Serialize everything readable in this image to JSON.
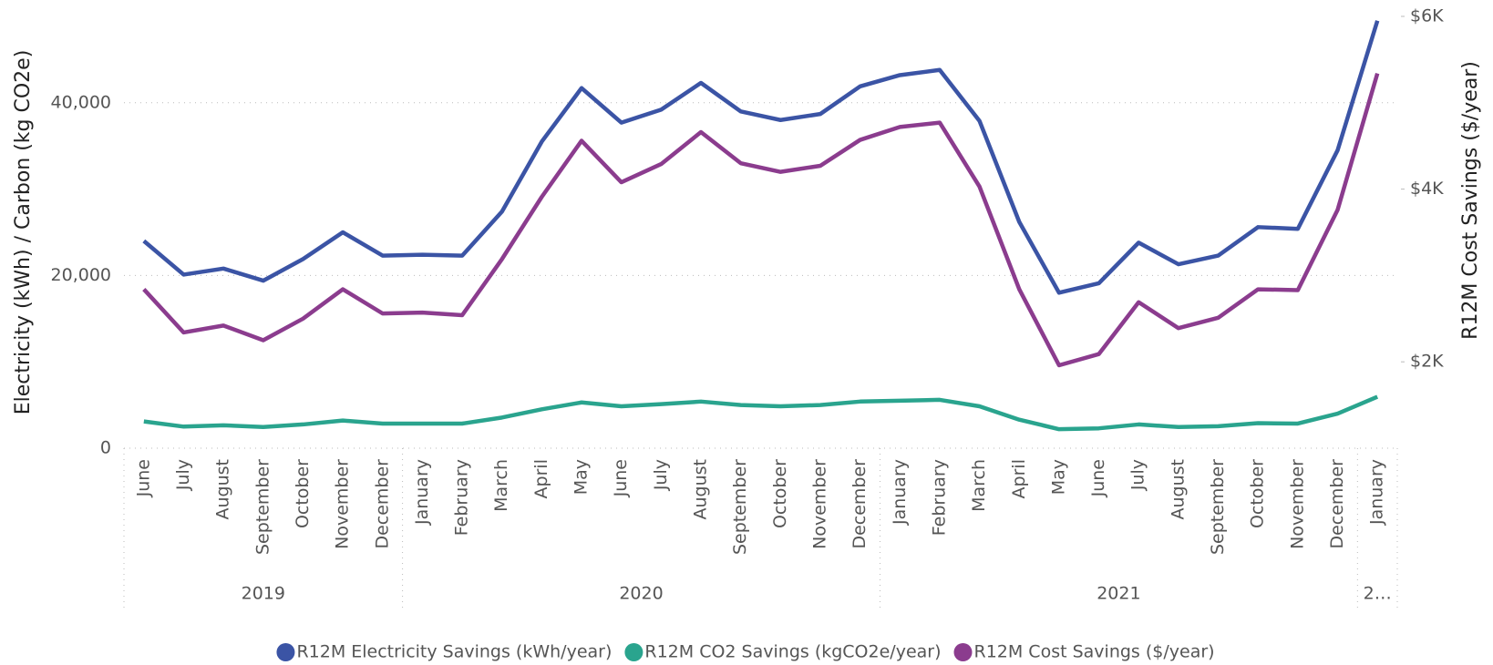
{
  "chart_data": {
    "type": "line",
    "y_label": "Electricity (kWh) / Carbon (kg CO2e)",
    "y2_label": "R12M Cost Savings ($/year)",
    "categories": [
      "June",
      "July",
      "August",
      "September",
      "October",
      "November",
      "December",
      "January",
      "February",
      "March",
      "April",
      "May",
      "June",
      "July",
      "August",
      "September",
      "October",
      "November",
      "December",
      "January",
      "February",
      "March",
      "April",
      "May",
      "June",
      "July",
      "August",
      "September",
      "October",
      "November",
      "December",
      "January"
    ],
    "years": [
      "2019",
      "2019",
      "2019",
      "2019",
      "2019",
      "2019",
      "2019",
      "2020",
      "2020",
      "2020",
      "2020",
      "2020",
      "2020",
      "2020",
      "2020",
      "2020",
      "2020",
      "2020",
      "2020",
      "2021",
      "2021",
      "2021",
      "2021",
      "2021",
      "2021",
      "2021",
      "2021",
      "2021",
      "2021",
      "2021",
      "2021",
      "2…"
    ],
    "series": [
      {
        "name": "R12M Electricity Savings (kWh/year)",
        "color": "#3b54a5",
        "values": [
          24000,
          20100,
          20800,
          19400,
          21900,
          25000,
          22300,
          22400,
          22300,
          27400,
          35500,
          41700,
          37700,
          39200,
          42300,
          39000,
          38000,
          38700,
          41900,
          43200,
          43800,
          37900,
          26200,
          18000,
          19100,
          23800,
          21300,
          22300,
          25600,
          25400,
          34500,
          49500
        ]
      },
      {
        "name": "R12M CO2 Savings (kgCO2e/year)",
        "color": "#2aa48e",
        "values": [
          3100,
          2500,
          2650,
          2450,
          2750,
          3200,
          2850,
          2850,
          2850,
          3550,
          4500,
          5300,
          4850,
          5100,
          5400,
          5000,
          4850,
          5000,
          5400,
          5500,
          5600,
          4850,
          3300,
          2200,
          2300,
          2750,
          2450,
          2550,
          2900,
          2850,
          4000,
          5950
        ]
      },
      {
        "name": "R12M Cost Savings ($/year)",
        "color": "#8b3c8e",
        "axis": "y2",
        "values": [
          2840,
          2340,
          2420,
          2250,
          2500,
          2840,
          2560,
          2570,
          2540,
          3190,
          3910,
          4560,
          4080,
          4290,
          4660,
          4300,
          4200,
          4270,
          4570,
          4720,
          4770,
          4030,
          2840,
          1960,
          2090,
          2690,
          2390,
          2510,
          2840,
          2830,
          3760,
          5340
        ]
      }
    ],
    "ylim": [
      0,
      50000
    ],
    "yticks": [
      0,
      {
        "value": 20000,
        "label": "20,000"
      },
      {
        "value": 40000,
        "label": "40,000"
      }
    ],
    "y2lim": [
      1000,
      6000
    ],
    "y2ticks": [
      {
        "value": 2000,
        "label": "$2K"
      },
      {
        "value": 4000,
        "label": "$4K"
      },
      {
        "value": 6000,
        "label": "$6K"
      }
    ],
    "grid": true
  }
}
